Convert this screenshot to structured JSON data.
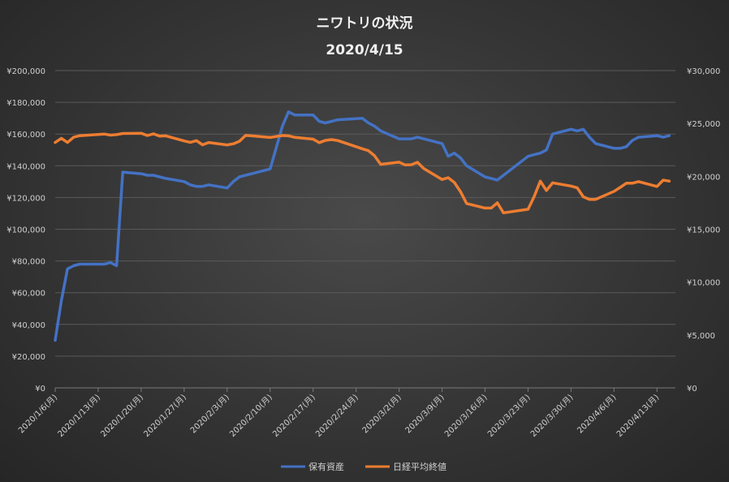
{
  "chart_data": {
    "type": "line",
    "title": "ニワトリの状況",
    "subtitle": "2020/4/15",
    "x_tick_labels": [
      "2020/1/6(月)",
      "2020/1/13(月)",
      "2020/1/20(月)",
      "2020/1/27(月)",
      "2020/2/3(月)",
      "2020/2/10(月)",
      "2020/2/17(月)",
      "2020/2/24(月)",
      "2020/3/2(月)",
      "2020/3/9(月)",
      "2020/3/16(月)",
      "2020/3/23(月)",
      "2020/3/30(月)",
      "2020/4/6(月)",
      "2020/4/13(月)"
    ],
    "x_range": [
      "2020-01-06",
      "2020-04-16"
    ],
    "y_left_ticks": [
      "¥0",
      "¥20,000",
      "¥40,000",
      "¥60,000",
      "¥80,000",
      "¥100,000",
      "¥120,000",
      "¥140,000",
      "¥160,000",
      "¥180,000",
      "¥200,000"
    ],
    "y_right_ticks": [
      "¥0",
      "¥5,000",
      "¥10,000",
      "¥15,000",
      "¥20,000",
      "¥25,000",
      "¥30,000"
    ],
    "ylim_left": [
      0,
      200000
    ],
    "ylim_right": [
      0,
      30000
    ],
    "grid": true,
    "legend_position": "bottom",
    "series": [
      {
        "name": "保有資産",
        "axis": "left",
        "color": "#4472c4",
        "x": [
          "2020-01-06",
          "2020-01-07",
          "2020-01-08",
          "2020-01-09",
          "2020-01-10",
          "2020-01-14",
          "2020-01-15",
          "2020-01-16",
          "2020-01-17",
          "2020-01-20",
          "2020-01-21",
          "2020-01-22",
          "2020-01-23",
          "2020-01-24",
          "2020-01-27",
          "2020-01-28",
          "2020-01-29",
          "2020-01-30",
          "2020-01-31",
          "2020-02-03",
          "2020-02-04",
          "2020-02-05",
          "2020-02-06",
          "2020-02-07",
          "2020-02-10",
          "2020-02-12",
          "2020-02-13",
          "2020-02-14",
          "2020-02-17",
          "2020-02-18",
          "2020-02-19",
          "2020-02-20",
          "2020-02-21",
          "2020-02-25",
          "2020-02-26",
          "2020-02-27",
          "2020-02-28",
          "2020-03-02",
          "2020-03-03",
          "2020-03-04",
          "2020-03-05",
          "2020-03-06",
          "2020-03-09",
          "2020-03-10",
          "2020-03-11",
          "2020-03-12",
          "2020-03-13",
          "2020-03-16",
          "2020-03-17",
          "2020-03-18",
          "2020-03-19",
          "2020-03-23",
          "2020-03-24",
          "2020-03-25",
          "2020-03-26",
          "2020-03-27",
          "2020-03-30",
          "2020-03-31",
          "2020-04-01",
          "2020-04-02",
          "2020-04-03",
          "2020-04-06",
          "2020-04-07",
          "2020-04-08",
          "2020-04-09",
          "2020-04-10",
          "2020-04-13",
          "2020-04-14",
          "2020-04-15"
        ],
        "values": [
          30000,
          55000,
          75000,
          77000,
          78000,
          78000,
          79000,
          77000,
          136000,
          135000,
          134000,
          134000,
          133000,
          132000,
          130000,
          128000,
          127000,
          127000,
          128000,
          126000,
          130000,
          133000,
          134000,
          135000,
          138000,
          165000,
          174000,
          172000,
          172000,
          168000,
          167000,
          168000,
          169000,
          170000,
          167000,
          165000,
          162000,
          157000,
          157000,
          157000,
          158000,
          157000,
          154000,
          146000,
          148000,
          145000,
          140000,
          133000,
          132000,
          131000,
          134000,
          146000,
          147000,
          148000,
          150000,
          160000,
          163000,
          162000,
          163000,
          158000,
          154000,
          151000,
          151000,
          152000,
          156000,
          158000,
          159000,
          158000,
          159000
        ]
      },
      {
        "name": "日経平均終値",
        "axis": "right",
        "color": "#ed7d31",
        "x": [
          "2020-01-06",
          "2020-01-07",
          "2020-01-08",
          "2020-01-09",
          "2020-01-10",
          "2020-01-14",
          "2020-01-15",
          "2020-01-16",
          "2020-01-17",
          "2020-01-20",
          "2020-01-21",
          "2020-01-22",
          "2020-01-23",
          "2020-01-24",
          "2020-01-27",
          "2020-01-28",
          "2020-01-29",
          "2020-01-30",
          "2020-01-31",
          "2020-02-03",
          "2020-02-04",
          "2020-02-05",
          "2020-02-06",
          "2020-02-07",
          "2020-02-10",
          "2020-02-12",
          "2020-02-13",
          "2020-02-14",
          "2020-02-17",
          "2020-02-18",
          "2020-02-19",
          "2020-02-20",
          "2020-02-21",
          "2020-02-25",
          "2020-02-26",
          "2020-02-27",
          "2020-02-28",
          "2020-03-02",
          "2020-03-03",
          "2020-03-04",
          "2020-03-05",
          "2020-03-06",
          "2020-03-09",
          "2020-03-10",
          "2020-03-11",
          "2020-03-12",
          "2020-03-13",
          "2020-03-16",
          "2020-03-17",
          "2020-03-18",
          "2020-03-19",
          "2020-03-23",
          "2020-03-24",
          "2020-03-25",
          "2020-03-26",
          "2020-03-27",
          "2020-03-30",
          "2020-03-31",
          "2020-04-01",
          "2020-04-02",
          "2020-04-03",
          "2020-04-06",
          "2020-04-07",
          "2020-04-08",
          "2020-04-09",
          "2020-04-10",
          "2020-04-13",
          "2020-04-14",
          "2020-04-15"
        ],
        "values": [
          23200,
          23600,
          23200,
          23700,
          23850,
          24000,
          23900,
          23950,
          24050,
          24080,
          23860,
          24020,
          23800,
          23830,
          23350,
          23220,
          23380,
          22980,
          23200,
          22970,
          23080,
          23320,
          23870,
          23830,
          23680,
          23860,
          23830,
          23690,
          23520,
          23190,
          23400,
          23480,
          23390,
          22610,
          22430,
          21950,
          21140,
          21340,
          21080,
          21100,
          21330,
          20750,
          19700,
          19870,
          19420,
          18560,
          17430,
          17000,
          17000,
          17500,
          16550,
          16890,
          18090,
          19550,
          18660,
          19390,
          19080,
          18920,
          18070,
          17820,
          17820,
          18580,
          18950,
          19350,
          19350,
          19500,
          19040,
          19640,
          19550
        ]
      }
    ]
  }
}
